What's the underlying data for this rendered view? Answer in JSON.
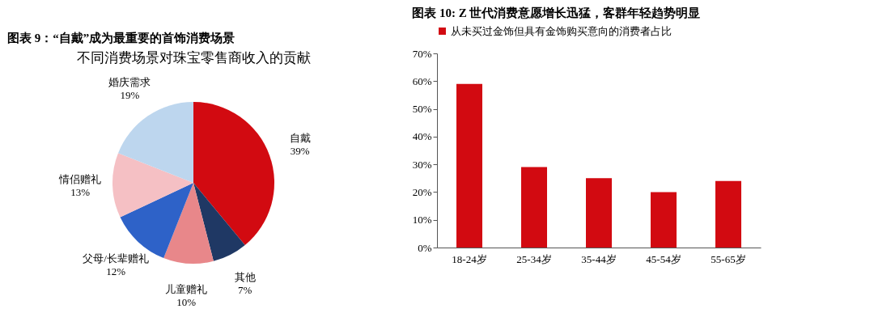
{
  "chart_data": [
    {
      "type": "pie",
      "title": "图表 9：“自戴”成为最重要的首饰消费场景",
      "subtitle": "不同消费场景对珠宝零售商收入的贡献",
      "categories": [
        "自戴",
        "其他",
        "儿童赠礼",
        "父母/长辈赠礼",
        "情侣赠礼",
        "婚庆需求"
      ],
      "values": [
        39,
        7,
        10,
        12,
        13,
        19
      ],
      "value_labels": [
        "39%",
        "7%",
        "10%",
        "12%",
        "13%",
        "19%"
      ],
      "colors": [
        "#d20a11",
        "#1f3864",
        "#e8878a",
        "#2e62c8",
        "#f5c0c4",
        "#bdd6ee"
      ],
      "legend": false
    },
    {
      "type": "bar",
      "title": "图表 10: Z 世代消费意愿增长迅猛，客群年轻趋势明显",
      "categories": [
        "18-24岁",
        "25-34岁",
        "35-44岁",
        "45-54岁",
        "55-65岁"
      ],
      "series": [
        {
          "name": "从未买过金饰但具有金饰购买意向的消费者占比",
          "color": "#d20a11",
          "values": [
            59,
            29,
            25,
            20,
            24
          ]
        }
      ],
      "ylim": [
        0,
        70
      ],
      "yticks": [
        {
          "value": 0,
          "label": "0%"
        },
        {
          "value": 10,
          "label": "10%"
        },
        {
          "value": 20,
          "label": "20%"
        },
        {
          "value": 30,
          "label": "30%"
        },
        {
          "value": 40,
          "label": "40%"
        },
        {
          "value": 50,
          "label": "50%"
        },
        {
          "value": 60,
          "label": "60%"
        },
        {
          "value": 70,
          "label": "70%"
        }
      ],
      "grid": false,
      "legend": "top"
    }
  ]
}
